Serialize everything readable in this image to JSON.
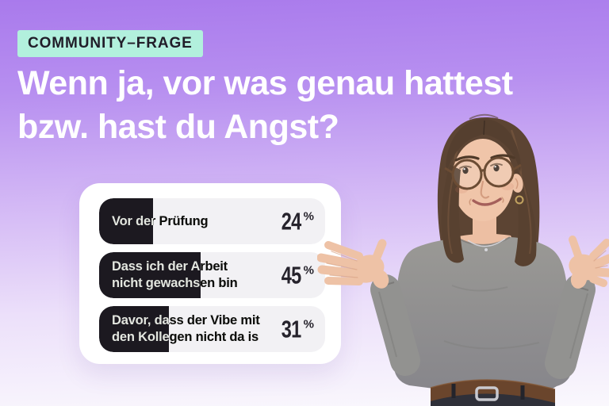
{
  "badge": {
    "label": "COMMUNITY–FRAGE"
  },
  "heading": {
    "lines": [
      "Wenn ja, vor was genau hattest",
      "bzw. hast du Angst?"
    ]
  },
  "poll": {
    "rows": [
      {
        "label_lines": [
          "Vor der Prüfung"
        ],
        "value": 24,
        "value_label": "24",
        "unit": "%"
      },
      {
        "label_lines": [
          "Dass ich der Arbeit",
          "nicht gewachsen bin"
        ],
        "value": 45,
        "value_label": "45",
        "unit": "%"
      },
      {
        "label_lines": [
          "Davor, dass der Vibe mit",
          "den Kollegen nicht da is"
        ],
        "value": 31,
        "value_label": "31",
        "unit": "%"
      }
    ]
  },
  "chart_data": {
    "type": "bar",
    "orientation": "horizontal",
    "title": "Wenn ja, vor was genau hattest bzw. hast du Angst?",
    "categories": [
      "Vor der Prüfung",
      "Dass ich der Arbeit nicht gewachsen bin",
      "Davor, dass der Vibe mit den Kollegen nicht da is"
    ],
    "values": [
      24,
      45,
      31
    ],
    "unit": "%",
    "xlim": [
      0,
      100
    ],
    "grid": false,
    "legend": false,
    "bar_color": "#1c1920",
    "track_color": "#f2f1f4"
  },
  "illustration": {
    "name": "woman-shrugging-cutout",
    "description": "Young woman with round glasses, brown half-up hair and gray long-sleeve top shrugging with both palms up, wearing dark jeans with brown belt"
  },
  "colors": {
    "background_top": "#a97aec",
    "background_bottom": "#faf8fd",
    "badge_bg": "#b2f0dd",
    "badge_text": "#211d29",
    "heading_text": "#ffffff",
    "card_bg": "#ffffff",
    "row_bg": "#f2f1f4",
    "bar_fill": "#1c1920",
    "percent_text": "#26232c"
  }
}
